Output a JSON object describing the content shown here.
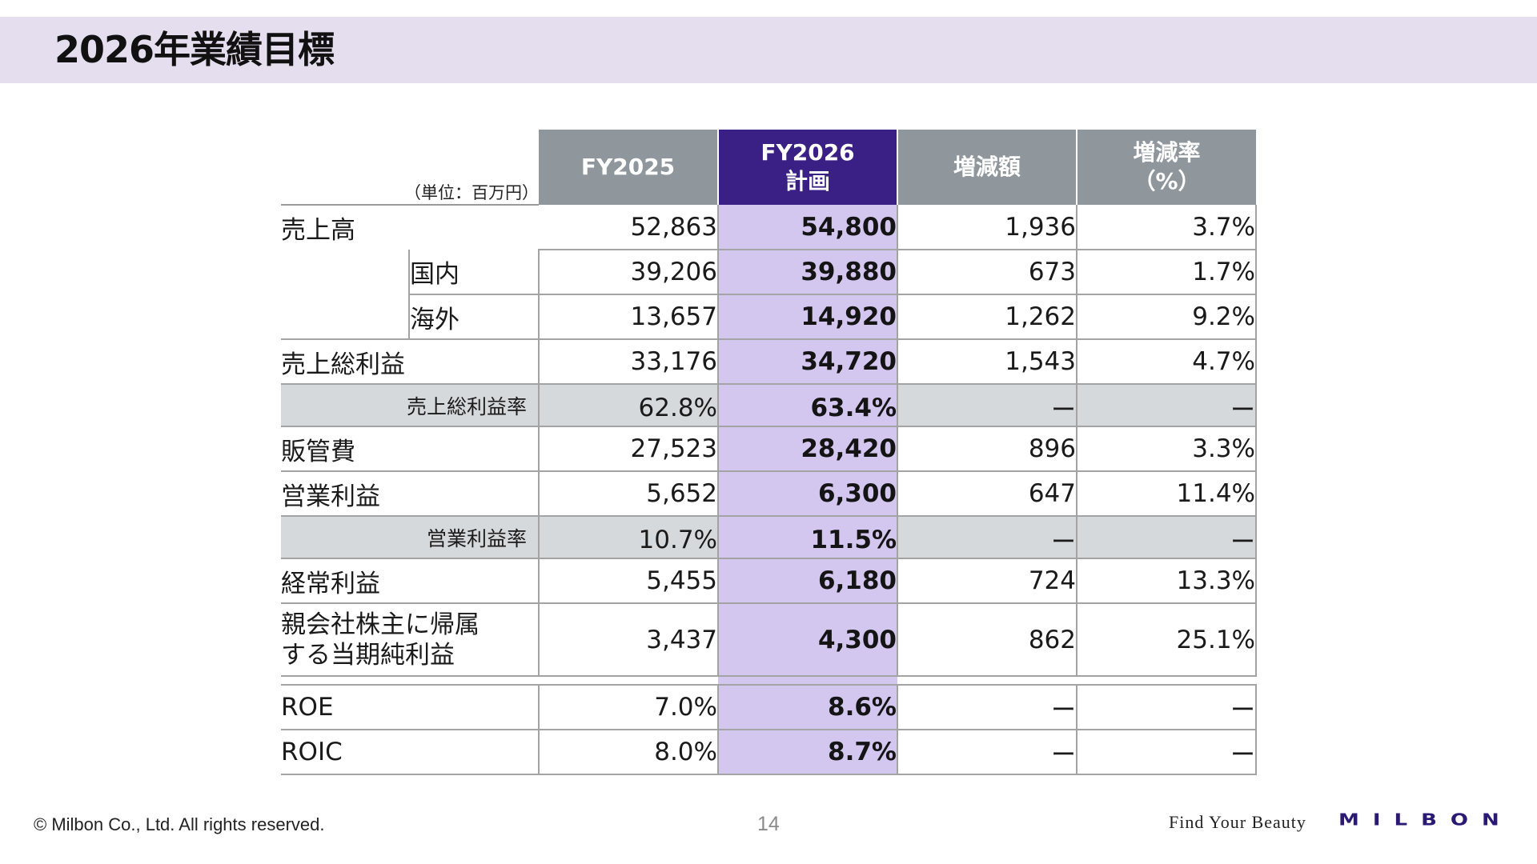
{
  "title": "2026年業績目標",
  "table": {
    "unit_label": "（単位：百万円）",
    "columns": {
      "fy2025": "FY2025",
      "fy2026_line1": "FY2026",
      "fy2026_line2": "計画",
      "change_amount": "増減額",
      "change_rate_line1": "増減率",
      "change_rate_line2": "（%）"
    },
    "rows": [
      {
        "label": "売上高",
        "fy2025": "52,863",
        "fy2026": "54,800",
        "change": "1,936",
        "rate": "3.7%"
      },
      {
        "label": "国内",
        "fy2025": "39,206",
        "fy2026": "39,880",
        "change": "673",
        "rate": "1.7%"
      },
      {
        "label": "海外",
        "fy2025": "13,657",
        "fy2026": "14,920",
        "change": "1,262",
        "rate": "9.2%"
      },
      {
        "label": "売上総利益",
        "fy2025": "33,176",
        "fy2026": "34,720",
        "change": "1,543",
        "rate": "4.7%"
      },
      {
        "label": "売上総利益率",
        "fy2025": "62.8%",
        "fy2026": "63.4%",
        "change": "ー",
        "rate": "ー"
      },
      {
        "label": "販管費",
        "fy2025": "27,523",
        "fy2026": "28,420",
        "change": "896",
        "rate": "3.3%"
      },
      {
        "label": "営業利益",
        "fy2025": "5,652",
        "fy2026": "6,300",
        "change": "647",
        "rate": "11.4%"
      },
      {
        "label": "営業利益率",
        "fy2025": "10.7%",
        "fy2026": "11.5%",
        "change": "ー",
        "rate": "ー"
      },
      {
        "label": "経常利益",
        "fy2025": "5,455",
        "fy2026": "6,180",
        "change": "724",
        "rate": "13.3%"
      },
      {
        "label_line1": "親会社株主に帰属",
        "label_line2": "する当期純利益",
        "fy2025": "3,437",
        "fy2026": "4,300",
        "change": "862",
        "rate": "25.1%"
      },
      {
        "label": "ROE",
        "fy2025": "7.0%",
        "fy2026": "8.6%",
        "change": "ー",
        "rate": "ー"
      },
      {
        "label": "ROIC",
        "fy2025": "8.0%",
        "fy2026": "8.7%",
        "change": "ー",
        "rate": "ー"
      }
    ]
  },
  "footer": {
    "copyright": "© Milbon Co., Ltd. All rights reserved.",
    "page_number": "14",
    "tagline": "Find Your Beauty",
    "logo_text": "MILBON"
  },
  "colors": {
    "title_bar": "#e5deee",
    "header_gray": "#8f969c",
    "header_plan": "#3a1f85",
    "plan_column": "#d3c6ef",
    "ratio_row": "#d6d9dc",
    "logo": "#2a1a73"
  }
}
